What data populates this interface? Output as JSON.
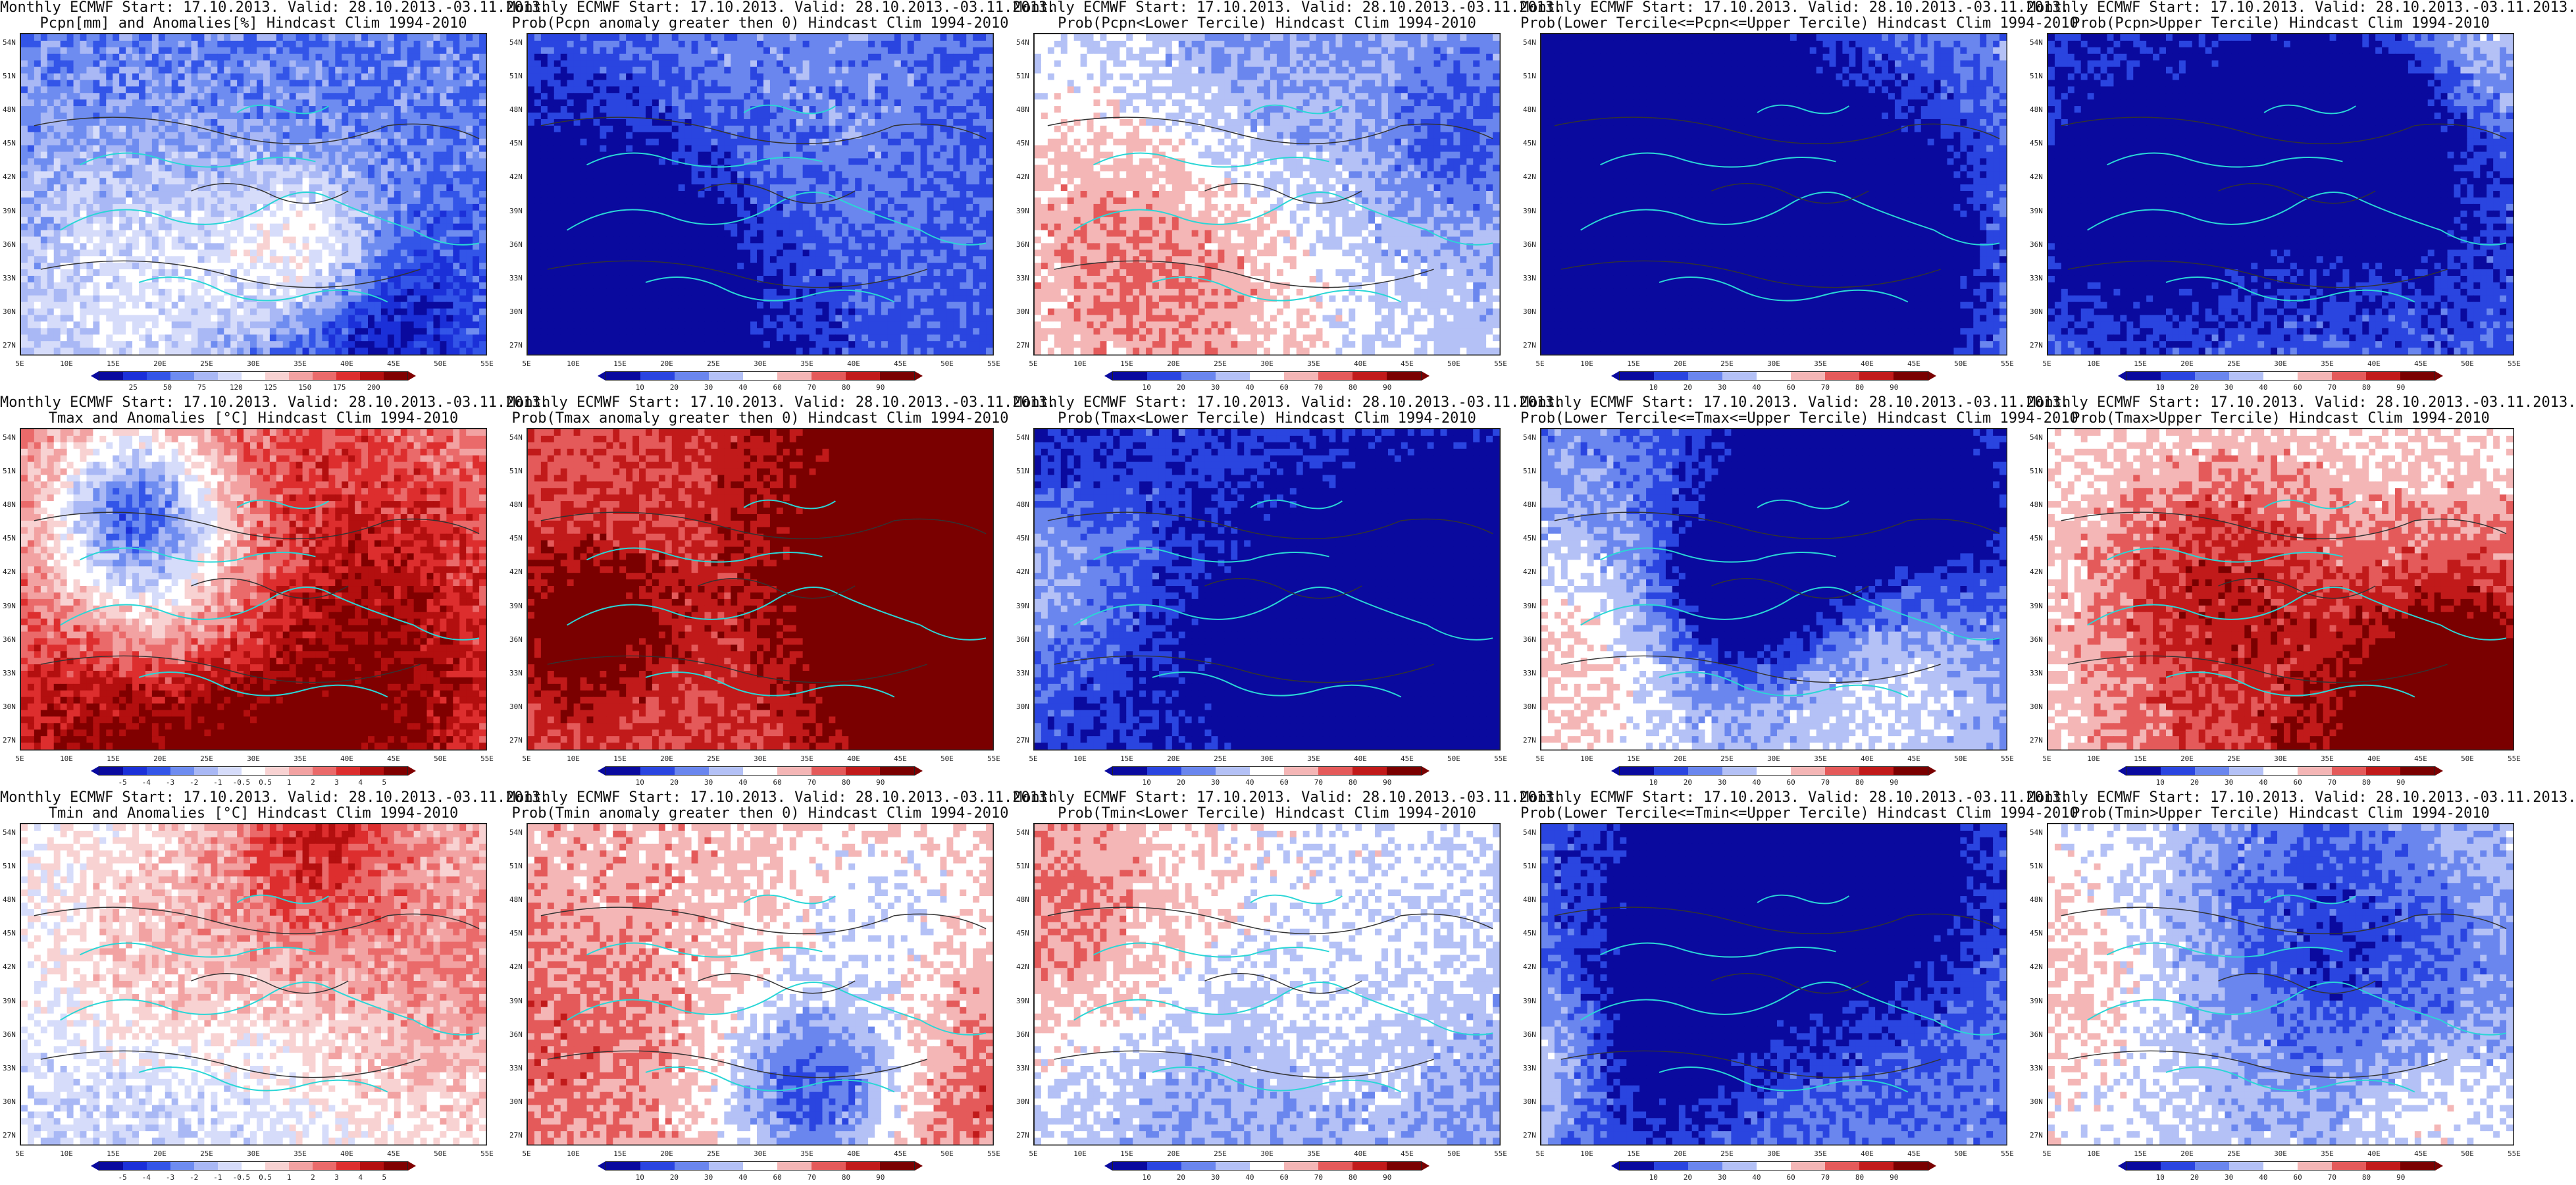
{
  "lat_labels": [
    "54N",
    "51N",
    "48N",
    "45N",
    "42N",
    "39N",
    "36N",
    "33N",
    "30N",
    "27N"
  ],
  "lon_labels": [
    "5E",
    "10E",
    "15E",
    "20E",
    "25E",
    "30E",
    "35E",
    "40E",
    "45E",
    "50E",
    "55E"
  ],
  "palettes": {
    "diverging": [
      "#0a0a9e",
      "#1b30d8",
      "#3355e8",
      "#6e8cf0",
      "#a9b8f5",
      "#d6dcfa",
      "#ffffff",
      "#f8d2d2",
      "#f2a2a2",
      "#ea6a6a",
      "#dd2e2e",
      "#b30f0f",
      "#800000"
    ],
    "prob": [
      "#0a0a9e",
      "#2a45e0",
      "#6a86ee",
      "#b4c1f6",
      "#ffffff",
      "#f4b6b6",
      "#e45a5a",
      "#c11a1a",
      "#7a0000"
    ]
  },
  "colorbar_ticks": {
    "pcpn_anom": [
      "25",
      "50",
      "75",
      "120",
      "125",
      "150",
      "175",
      "200"
    ],
    "temp_anom": [
      "-5",
      "-4",
      "-3",
      "-2",
      "-1",
      "-0.5",
      "0.5",
      "1",
      "2",
      "3",
      "4",
      "5"
    ],
    "prob": [
      "10",
      "20",
      "30",
      "40",
      "60",
      "70",
      "80",
      "90"
    ]
  },
  "panels": [
    {
      "row": 0,
      "col": 0,
      "t1": "Monthly ECMWF Start: 17.10.2013. Valid: 28.10.2013.-03.11.2013.",
      "t2": "Pcpn[mm] and Anomalies[%] Hindcast Clim 1994-2010",
      "cbar": "pcpn_anom",
      "pal": "diverging",
      "bias": -0.55,
      "seed": 3
    },
    {
      "row": 0,
      "col": 1,
      "t1": "Monthly ECMWF Start: 17.10.2013. Valid: 28.10.2013.-03.11.2013.",
      "t2": "Prob(Pcpn anomaly greater then 0) Hindcast Clim 1994-2010",
      "cbar": "prob",
      "pal": "prob",
      "bias": -0.7,
      "seed": 7
    },
    {
      "row": 0,
      "col": 2,
      "t1": "Monthly ECMWF Start: 17.10.2013. Valid: 28.10.2013.-03.11.2013.",
      "t2": "Prob(Pcpn<Lower Tercile) Hindcast Clim 1994-2010",
      "cbar": "prob",
      "pal": "prob",
      "bias": -0.2,
      "seed": 11
    },
    {
      "row": 0,
      "col": 3,
      "t1": "Monthly ECMWF Start: 17.10.2013. Valid: 28.10.2013.-03.11.2013.",
      "t2": "Prob(Lower Tercile<=Pcpn<=Upper Tercile) Hindcast Clim 1994-2010",
      "cbar": "prob",
      "pal": "prob",
      "bias": -0.35,
      "seed": 13
    },
    {
      "row": 0,
      "col": 4,
      "t1": "Monthly ECMWF Start: 17.10.2013. Valid: 28.10.2013.-03.11.2013.",
      "t2": "Prob(Pcpn>Upper Tercile) Hindcast Clim 1994-2010",
      "cbar": "prob",
      "pal": "prob",
      "bias": -0.65,
      "seed": 17
    },
    {
      "row": 1,
      "col": 0,
      "t1": "Monthly ECMWF Start: 17.10.2013. Valid: 28.10.2013.-03.11.2013.",
      "t2": "Tmax and Anomalies [°C] Hindcast Clim 1994-2010",
      "cbar": "temp_anom",
      "pal": "diverging",
      "bias": 0.35,
      "seed": 19
    },
    {
      "row": 1,
      "col": 1,
      "t1": "Monthly ECMWF Start: 17.10.2013. Valid: 28.10.2013.-03.11.2013.",
      "t2": "Prob(Tmax anomaly greater then 0) Hindcast Clim 1994-2010",
      "cbar": "prob",
      "pal": "prob",
      "bias": 0.55,
      "seed": 23
    },
    {
      "row": 1,
      "col": 2,
      "t1": "Monthly ECMWF Start: 17.10.2013. Valid: 28.10.2013.-03.11.2013.",
      "t2": "Prob(Tmax<Lower Tercile) Hindcast Clim 1994-2010",
      "cbar": "prob",
      "pal": "prob",
      "bias": -0.6,
      "seed": 29
    },
    {
      "row": 1,
      "col": 3,
      "t1": "Monthly ECMWF Start: 17.10.2013. Valid: 28.10.2013.-03.11.2013.",
      "t2": "Prob(Lower Tercile<=Tmax<=Upper Tercile) Hindcast Clim 1994-2010",
      "cbar": "prob",
      "pal": "prob",
      "bias": -0.55,
      "seed": 31
    },
    {
      "row": 1,
      "col": 4,
      "t1": "Monthly ECMWF Start: 17.10.2013. Valid: 28.10.2013.-03.11.2013.",
      "t2": "Prob(Tmax>Upper Tercile) Hindcast Clim 1994-2010",
      "cbar": "prob",
      "pal": "prob",
      "bias": 0.0,
      "seed": 37
    },
    {
      "row": 2,
      "col": 0,
      "t1": "Monthly ECMWF Start: 17.10.2013. Valid: 28.10.2013.-03.11.2013.",
      "t2": "Tmin and Anomalies [°C] Hindcast Clim 1994-2010",
      "cbar": "temp_anom",
      "pal": "diverging",
      "bias": 0.05,
      "seed": 41
    },
    {
      "row": 2,
      "col": 1,
      "t1": "Monthly ECMWF Start: 17.10.2013. Valid: 28.10.2013.-03.11.2013.",
      "t2": "Prob(Tmin anomaly greater then 0) Hindcast Clim 1994-2010",
      "cbar": "prob",
      "pal": "prob",
      "bias": 0.25,
      "seed": 43
    },
    {
      "row": 2,
      "col": 2,
      "t1": "Monthly ECMWF Start: 17.10.2013. Valid: 28.10.2013.-03.11.2013.",
      "t2": "Prob(Tmin<Lower Tercile) Hindcast Clim 1994-2010",
      "cbar": "prob",
      "pal": "prob",
      "bias": -0.05,
      "seed": 47
    },
    {
      "row": 2,
      "col": 3,
      "t1": "Monthly ECMWF Start: 17.10.2013. Valid: 28.10.2013.-03.11.2013.",
      "t2": "Prob(Lower Tercile<=Tmin<=Upper Tercile) Hindcast Clim 1994-2010",
      "cbar": "prob",
      "pal": "prob",
      "bias": -0.5,
      "seed": 53
    },
    {
      "row": 2,
      "col": 4,
      "t1": "Monthly ECMWF Start: 17.10.2013. Valid: 28.10.2013.-03.11.2013.",
      "t2": "Prob(Tmin>Upper Tercile) Hindcast Clim 1994-2010",
      "cbar": "prob",
      "pal": "prob",
      "bias": -0.1,
      "seed": 59
    }
  ]
}
